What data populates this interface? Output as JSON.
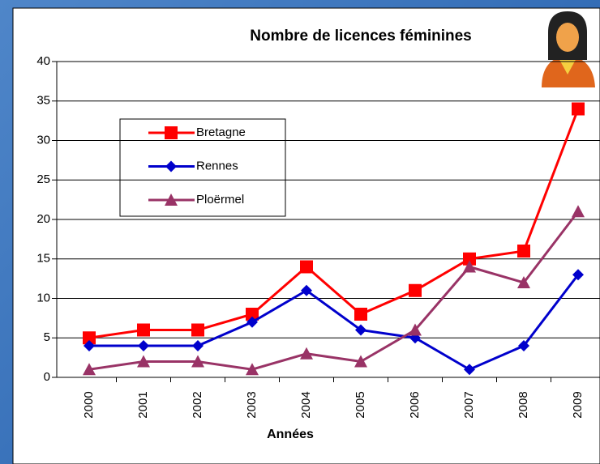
{
  "chart_data": {
    "type": "line",
    "title": "Nombre de licences féminines",
    "x_label": "Années",
    "categories": [
      "2000",
      "2001",
      "2002",
      "2003",
      "2004",
      "2005",
      "2006",
      "2007",
      "2008",
      "2009"
    ],
    "series": [
      {
        "name": "Bretagne",
        "color": "#ff0000",
        "marker": "square",
        "values": [
          5,
          6,
          6,
          8,
          14,
          8,
          11,
          15,
          16,
          34
        ]
      },
      {
        "name": "Rennes",
        "color": "#0000cc",
        "marker": "diamond",
        "values": [
          4,
          4,
          4,
          7,
          11,
          6,
          5,
          1,
          4,
          13
        ]
      },
      {
        "name": "Ploërmel",
        "color": "#993366",
        "marker": "triangle",
        "values": [
          1,
          2,
          2,
          1,
          3,
          2,
          6,
          14,
          12,
          21
        ]
      }
    ],
    "ylim": [
      0,
      40
    ],
    "yticks": [
      0,
      5,
      10,
      15,
      20,
      25,
      30,
      35,
      40
    ],
    "grid": true
  }
}
